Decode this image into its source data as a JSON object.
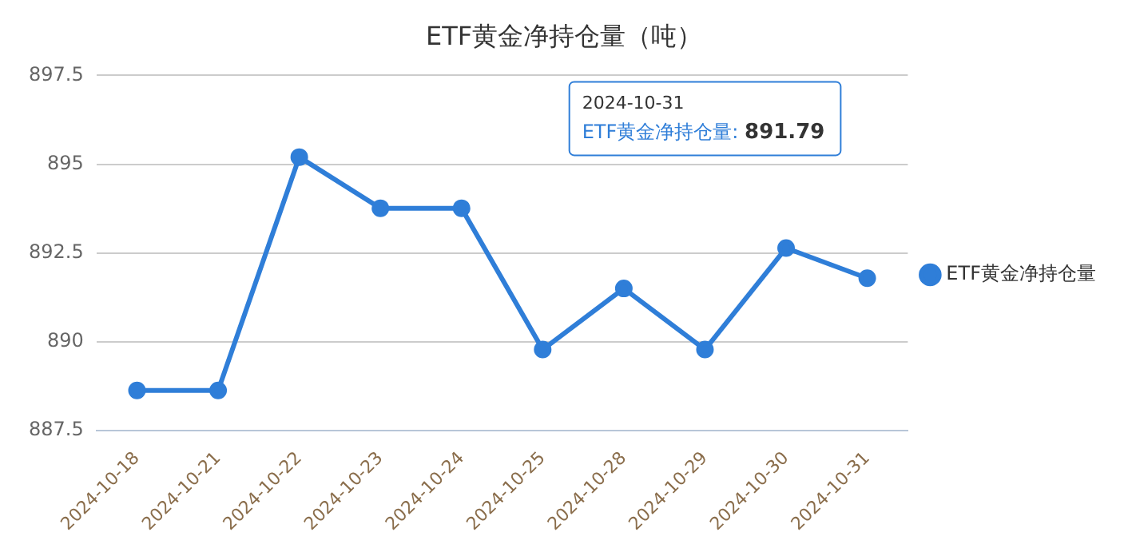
{
  "chart_data": {
    "type": "line",
    "title": "ETF黄金净持仓量（吨）",
    "categories": [
      "2024-10-18",
      "2024-10-21",
      "2024-10-22",
      "2024-10-23",
      "2024-10-24",
      "2024-10-25",
      "2024-10-28",
      "2024-10-29",
      "2024-10-30",
      "2024-10-31"
    ],
    "series": [
      {
        "name": "ETF黄金净持仓量",
        "color": "#2f7ed8",
        "values": [
          888.63,
          888.63,
          895.2,
          893.76,
          893.76,
          889.78,
          891.5,
          889.78,
          892.64,
          891.79
        ]
      }
    ],
    "ylim": [
      887.5,
      897.5
    ],
    "yticks": [
      887.5,
      890,
      892.5,
      895,
      897.5
    ],
    "grid": "y",
    "legend": "right",
    "marker": "circle",
    "line_style": "solid",
    "annotations": [
      "2024-10-31\nETF黄金净持仓量: 891.79"
    ]
  }
}
